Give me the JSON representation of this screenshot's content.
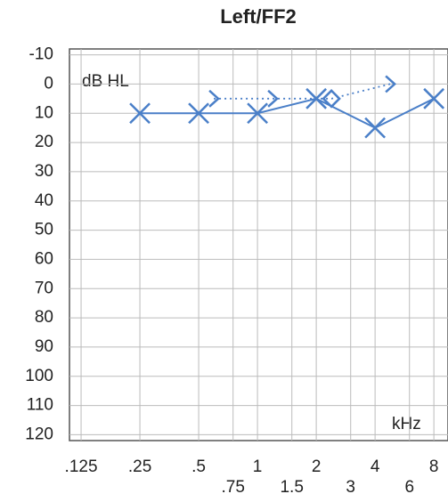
{
  "chart_data": {
    "type": "audiogram",
    "title": "Left/FF2",
    "ylabel": "dB HL",
    "xlabel": "kHz",
    "xscale": "log",
    "xlim": [
      0.109,
      9.45
    ],
    "xticks": [
      {
        "value": 0.125,
        "label": ".125"
      },
      {
        "value": 0.25,
        "label": ".25"
      },
      {
        "value": 0.5,
        "label": ".5"
      },
      1,
      2,
      4,
      8
    ],
    "xminorticks": [
      {
        "value": 0.75,
        "label": ".75"
      },
      1.5,
      3,
      6
    ],
    "ylim": [
      -12,
      122
    ],
    "yinvert": true,
    "yticks": [
      -10,
      0,
      10,
      20,
      30,
      40,
      50,
      60,
      70,
      80,
      90,
      100,
      110,
      120
    ],
    "grid": true,
    "series": [
      {
        "color": "#4a7fc8",
        "marker": "x",
        "line": "solid",
        "x": [
          0.25,
          0.5,
          1,
          2,
          4,
          8
        ],
        "values": [
          10,
          10,
          10,
          5,
          15,
          5
        ]
      },
      {
        "color": "#4a7fc8",
        "marker": ">",
        "line": "dotted",
        "markers": [
          ">",
          ">",
          "diamond",
          ">"
        ],
        "x": [
          0.5,
          1,
          2,
          4
        ],
        "values": [
          5,
          5,
          5,
          0
        ]
      }
    ]
  }
}
